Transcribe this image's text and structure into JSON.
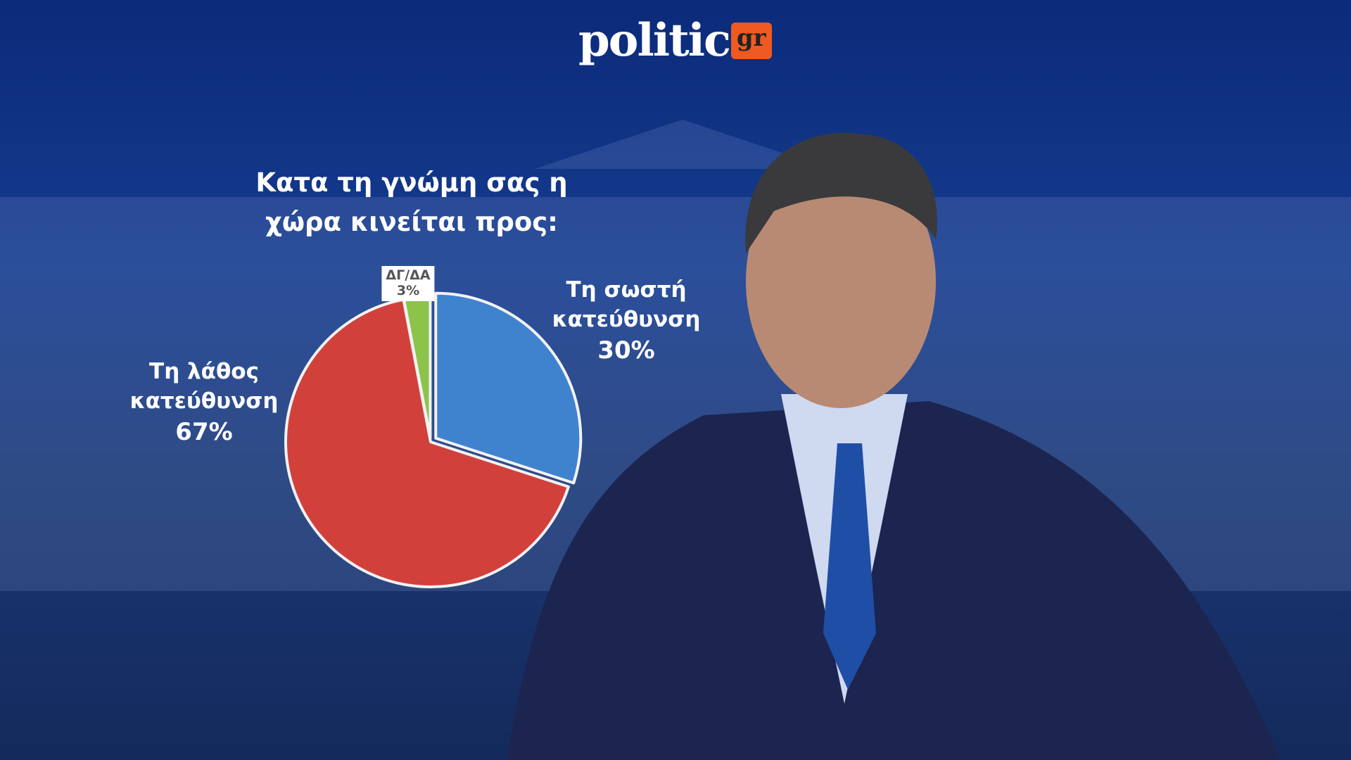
{
  "brand": {
    "name": "politic",
    "suffix": "gr"
  },
  "chart_data": {
    "type": "pie",
    "title": "Κατα τη γνώμη σας η χώρα κινείται προς:",
    "categories": [
      "Τη σωστή κατεύθυνση",
      "Τη λάθος κατεύθυνση",
      "ΔΓ/ΔΑ"
    ],
    "values": [
      30,
      67,
      3
    ],
    "value_labels": [
      "30%",
      "67%",
      "3%"
    ],
    "colors": [
      "#3f83cf",
      "#d2403c",
      "#8cc34a"
    ]
  }
}
